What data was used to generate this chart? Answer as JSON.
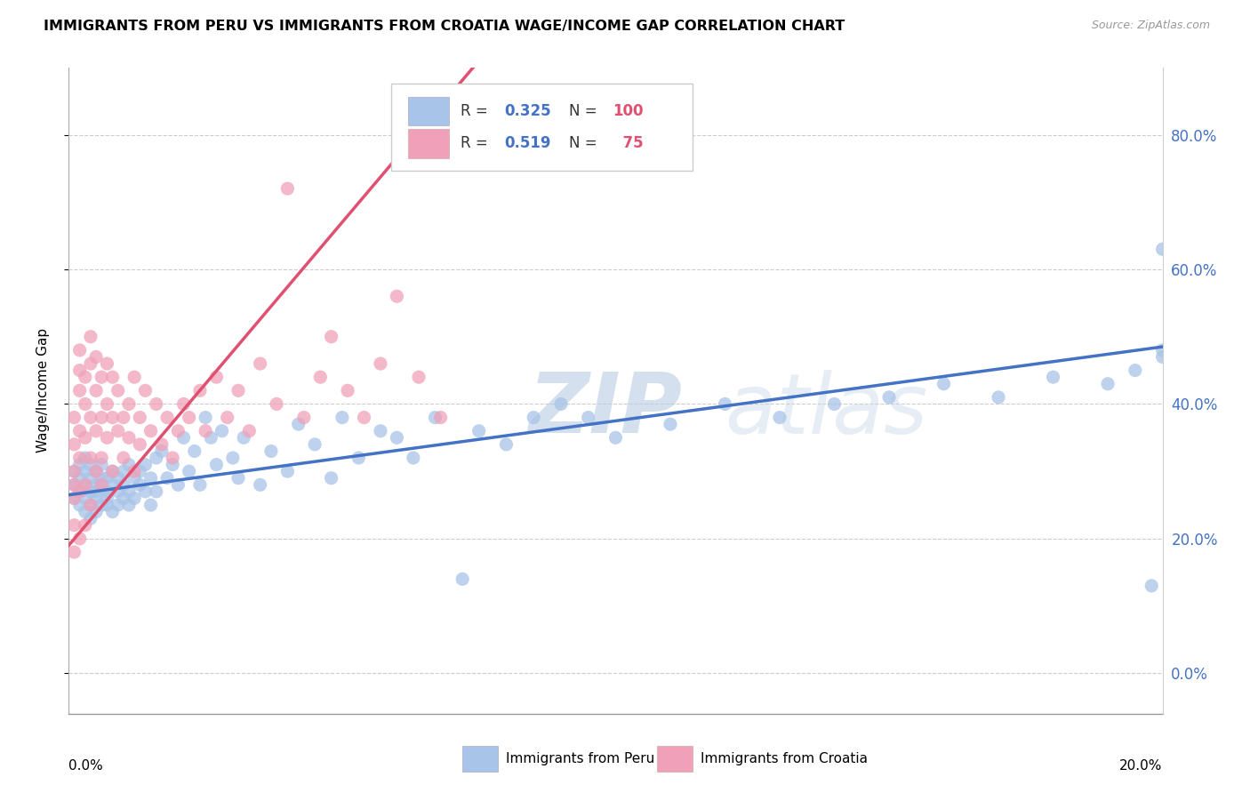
{
  "title": "IMMIGRANTS FROM PERU VS IMMIGRANTS FROM CROATIA WAGE/INCOME GAP CORRELATION CHART",
  "source": "Source: ZipAtlas.com",
  "ylabel": "Wage/Income Gap",
  "ytick_positions": [
    0.0,
    0.2,
    0.4,
    0.6,
    0.8
  ],
  "xrange": [
    0.0,
    0.2
  ],
  "yrange": [
    -0.06,
    0.9
  ],
  "legend_peru_R": "0.325",
  "legend_peru_N": "100",
  "legend_croatia_R": "0.519",
  "legend_croatia_N": "75",
  "color_peru": "#a8c4e8",
  "color_croatia": "#f0a0b8",
  "line_color_peru": "#4472c4",
  "line_color_croatia": "#e05070",
  "watermark_zip": "ZIP",
  "watermark_atlas": "atlas",
  "peru_x": [
    0.001,
    0.001,
    0.001,
    0.002,
    0.002,
    0.002,
    0.002,
    0.003,
    0.003,
    0.003,
    0.003,
    0.003,
    0.004,
    0.004,
    0.004,
    0.004,
    0.004,
    0.005,
    0.005,
    0.005,
    0.005,
    0.005,
    0.006,
    0.006,
    0.006,
    0.006,
    0.007,
    0.007,
    0.007,
    0.007,
    0.008,
    0.008,
    0.008,
    0.009,
    0.009,
    0.009,
    0.01,
    0.01,
    0.01,
    0.011,
    0.011,
    0.011,
    0.012,
    0.012,
    0.013,
    0.013,
    0.014,
    0.014,
    0.015,
    0.015,
    0.016,
    0.016,
    0.017,
    0.018,
    0.019,
    0.02,
    0.021,
    0.022,
    0.023,
    0.024,
    0.025,
    0.026,
    0.027,
    0.028,
    0.03,
    0.031,
    0.032,
    0.035,
    0.037,
    0.04,
    0.042,
    0.045,
    0.048,
    0.05,
    0.053,
    0.057,
    0.06,
    0.063,
    0.067,
    0.072,
    0.075,
    0.08,
    0.085,
    0.09,
    0.095,
    0.1,
    0.11,
    0.12,
    0.13,
    0.14,
    0.15,
    0.16,
    0.17,
    0.18,
    0.19,
    0.195,
    0.198,
    0.2,
    0.2,
    0.2
  ],
  "peru_y": [
    0.28,
    0.3,
    0.26,
    0.29,
    0.27,
    0.25,
    0.31,
    0.28,
    0.26,
    0.3,
    0.24,
    0.32,
    0.27,
    0.29,
    0.25,
    0.31,
    0.23,
    0.28,
    0.26,
    0.3,
    0.24,
    0.27,
    0.29,
    0.25,
    0.28,
    0.31,
    0.27,
    0.25,
    0.29,
    0.26,
    0.28,
    0.24,
    0.3,
    0.27,
    0.25,
    0.29,
    0.3,
    0.26,
    0.28,
    0.31,
    0.27,
    0.25,
    0.29,
    0.26,
    0.3,
    0.28,
    0.27,
    0.31,
    0.25,
    0.29,
    0.32,
    0.27,
    0.33,
    0.29,
    0.31,
    0.28,
    0.35,
    0.3,
    0.33,
    0.28,
    0.38,
    0.35,
    0.31,
    0.36,
    0.32,
    0.29,
    0.35,
    0.28,
    0.33,
    0.3,
    0.37,
    0.34,
    0.29,
    0.38,
    0.32,
    0.36,
    0.35,
    0.32,
    0.38,
    0.14,
    0.36,
    0.34,
    0.38,
    0.4,
    0.38,
    0.35,
    0.37,
    0.4,
    0.38,
    0.4,
    0.41,
    0.43,
    0.41,
    0.44,
    0.43,
    0.45,
    0.13,
    0.47,
    0.63,
    0.48
  ],
  "croatia_x": [
    0.001,
    0.001,
    0.001,
    0.001,
    0.001,
    0.001,
    0.001,
    0.002,
    0.002,
    0.002,
    0.002,
    0.002,
    0.002,
    0.002,
    0.003,
    0.003,
    0.003,
    0.003,
    0.003,
    0.004,
    0.004,
    0.004,
    0.004,
    0.004,
    0.005,
    0.005,
    0.005,
    0.005,
    0.006,
    0.006,
    0.006,
    0.006,
    0.007,
    0.007,
    0.007,
    0.008,
    0.008,
    0.008,
    0.009,
    0.009,
    0.01,
    0.01,
    0.011,
    0.011,
    0.012,
    0.012,
    0.013,
    0.013,
    0.014,
    0.015,
    0.016,
    0.017,
    0.018,
    0.019,
    0.02,
    0.021,
    0.022,
    0.024,
    0.025,
    0.027,
    0.029,
    0.031,
    0.033,
    0.035,
    0.038,
    0.04,
    0.043,
    0.046,
    0.048,
    0.051,
    0.054,
    0.057,
    0.06,
    0.064,
    0.068
  ],
  "croatia_y": [
    0.26,
    0.3,
    0.34,
    0.28,
    0.38,
    0.22,
    0.18,
    0.42,
    0.36,
    0.32,
    0.45,
    0.48,
    0.27,
    0.2,
    0.4,
    0.35,
    0.44,
    0.28,
    0.22,
    0.46,
    0.38,
    0.32,
    0.5,
    0.25,
    0.42,
    0.36,
    0.3,
    0.47,
    0.38,
    0.44,
    0.32,
    0.28,
    0.4,
    0.35,
    0.46,
    0.38,
    0.3,
    0.44,
    0.36,
    0.42,
    0.38,
    0.32,
    0.4,
    0.35,
    0.44,
    0.3,
    0.38,
    0.34,
    0.42,
    0.36,
    0.4,
    0.34,
    0.38,
    0.32,
    0.36,
    0.4,
    0.38,
    0.42,
    0.36,
    0.44,
    0.38,
    0.42,
    0.36,
    0.46,
    0.4,
    0.72,
    0.38,
    0.44,
    0.5,
    0.42,
    0.38,
    0.46,
    0.56,
    0.44,
    0.38
  ]
}
